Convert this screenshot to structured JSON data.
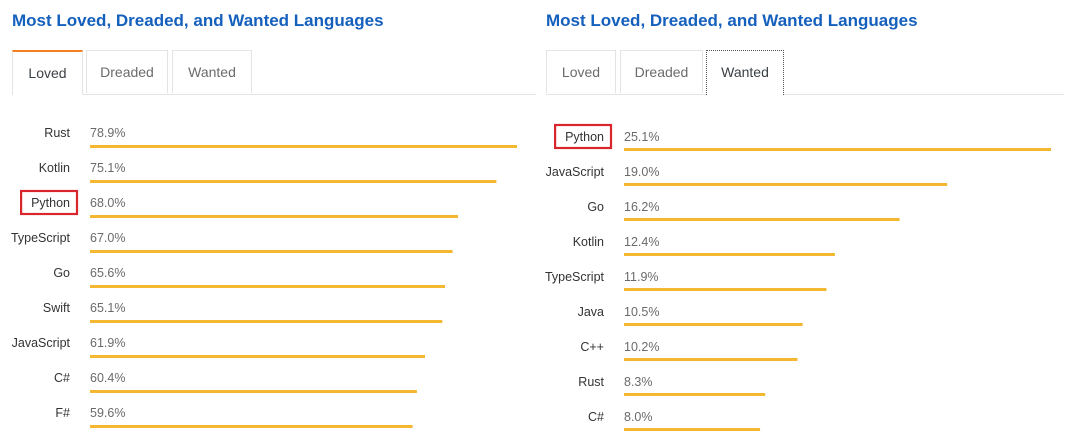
{
  "chart_data": [
    {
      "type": "bar",
      "title": "Most Loved, Dreaded, and Wanted Languages",
      "tabs": [
        "Loved",
        "Dreaded",
        "Wanted"
      ],
      "active_tab": "Loved",
      "categories": [
        "Rust",
        "Kotlin",
        "Python",
        "TypeScript",
        "Go",
        "Swift",
        "JavaScript",
        "C#",
        "F#"
      ],
      "values": [
        78.9,
        75.1,
        68.0,
        67.0,
        65.6,
        65.1,
        61.9,
        60.4,
        59.6
      ],
      "value_labels": [
        "78.9%",
        "75.1%",
        "68.0%",
        "67.0%",
        "65.6%",
        "65.1%",
        "61.9%",
        "60.4%",
        "59.6%"
      ],
      "highlighted_category": "Python",
      "bar_color": "#f4b830",
      "highlight_color": "#d9262c"
    },
    {
      "type": "bar",
      "title": "Most Loved, Dreaded, and Wanted Languages",
      "tabs": [
        "Loved",
        "Dreaded",
        "Wanted"
      ],
      "active_tab": "Wanted",
      "categories": [
        "Python",
        "JavaScript",
        "Go",
        "Kotlin",
        "TypeScript",
        "Java",
        "C++",
        "Rust",
        "C#"
      ],
      "values": [
        25.1,
        19.0,
        16.2,
        12.4,
        11.9,
        10.5,
        10.2,
        8.3,
        8.0
      ],
      "value_labels": [
        "25.1%",
        "19.0%",
        "16.2%",
        "12.4%",
        "11.9%",
        "10.5%",
        "10.2%",
        "8.3%",
        "8.0%"
      ],
      "highlighted_category": "Python",
      "bar_color": "#f4b830",
      "highlight_color": "#d9262c"
    }
  ]
}
